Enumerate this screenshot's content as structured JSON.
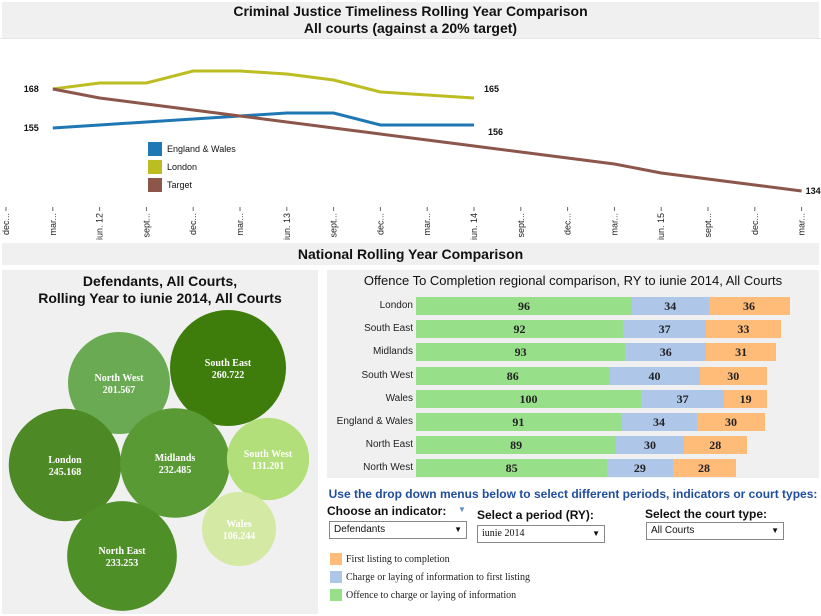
{
  "header": {
    "title_line1": "Criminal Justice Timeliness Rolling Year Comparison",
    "title_line2": "All courts (against a 20% target)"
  },
  "line_chart": {
    "x_ticks": [
      "dec...",
      "mar...",
      "iun. 12",
      "sept...",
      "dec...",
      "mar...",
      "iun. 13",
      "sept...",
      "dec...",
      "mar...",
      "iun. 14",
      "sept...",
      "dec...",
      "mar...",
      "iun. 15",
      "sept...",
      "dec...",
      "mar..."
    ],
    "legend": [
      {
        "label": "England & Wales",
        "color": "#1f77b4"
      },
      {
        "label": "London",
        "color": "#bcbd22"
      },
      {
        "label": "Target",
        "color": "#8c564b"
      }
    ],
    "labels": {
      "start_london": "168",
      "start_ew": "155",
      "end_london": "165",
      "end_ew": "156",
      "end_target": "134"
    }
  },
  "chart_data": {
    "type": "line",
    "x": [
      "dec...",
      "mar...",
      "iun. 12",
      "sept...",
      "dec...",
      "mar...",
      "iun. 13",
      "sept...",
      "dec...",
      "mar...",
      "iun. 14",
      "sept...",
      "dec...",
      "mar...",
      "iun. 15",
      "sept...",
      "dec...",
      "mar..."
    ],
    "series": [
      {
        "name": "England & Wales",
        "color": "#1f77b4",
        "values": [
          null,
          155,
          156,
          157,
          158,
          159,
          160,
          160,
          156,
          156,
          156,
          null,
          null,
          null,
          null,
          null,
          null,
          null
        ]
      },
      {
        "name": "London",
        "color": "#bcbd22",
        "values": [
          null,
          168,
          170,
          170,
          174,
          174,
          173,
          171,
          167,
          166,
          165,
          null,
          null,
          null,
          null,
          null,
          null,
          null
        ]
      },
      {
        "name": "Target",
        "color": "#8c564b",
        "values": [
          null,
          168,
          165,
          163,
          161,
          159,
          157,
          155,
          153,
          151,
          149,
          147,
          145,
          143,
          140,
          138,
          136,
          134
        ]
      }
    ],
    "ylim": [
      130,
      185
    ]
  },
  "national": {
    "title": "National Rolling Year Comparison"
  },
  "bubbles": {
    "title_line1": "Defendants, All Courts,",
    "title_line2": "Rolling Year to iunie 2014, All Courts",
    "items": [
      {
        "name": "North West",
        "value": "201.567",
        "num": 201.567,
        "color": "#6aaa52"
      },
      {
        "name": "South East",
        "value": "260.722",
        "num": 260.722,
        "color": "#3e7d0c"
      },
      {
        "name": "London",
        "value": "245.168",
        "num": 245.168,
        "color": "#4d8a26"
      },
      {
        "name": "Midlands",
        "value": "232.485",
        "num": 232.485,
        "color": "#5a9a35"
      },
      {
        "name": "South West",
        "value": "131.201",
        "num": 131.201,
        "color": "#b3df7a"
      },
      {
        "name": "Wales",
        "value": "106.244",
        "num": 106.244,
        "color": "#d4e9a4"
      },
      {
        "name": "North East",
        "value": "233.253",
        "num": 233.253,
        "color": "#4f8f28"
      }
    ]
  },
  "regional": {
    "title": "Offence To Completion regional comparison, RY to iunie 2014, All Courts",
    "rows": [
      {
        "label": "London",
        "a": 96,
        "b": 34,
        "c": 36
      },
      {
        "label": "South East",
        "a": 92,
        "b": 37,
        "c": 33
      },
      {
        "label": "Midlands",
        "a": 93,
        "b": 36,
        "c": 31
      },
      {
        "label": "South West",
        "a": 86,
        "b": 40,
        "c": 30
      },
      {
        "label": "Wales",
        "a": 100,
        "b": 37,
        "c": 19
      },
      {
        "label": "England & Wales",
        "a": 91,
        "b": 34,
        "c": 30
      },
      {
        "label": "North East",
        "a": 89,
        "b": 30,
        "c": 28
      },
      {
        "label": "North West",
        "a": 85,
        "b": 29,
        "c": 28
      }
    ],
    "colors": {
      "a": "#98df8a",
      "b": "#aec7e8",
      "c": "#ffbb78"
    }
  },
  "controls": {
    "instruction": "Use the drop down menus below to select different periods, indicators or court types:",
    "indicator_label": "Choose an indicator:",
    "indicator_value": "Defendants",
    "period_label": "Select a period (RY):",
    "period_value": "iunie 2014",
    "court_label": "Select the court type:",
    "court_value": "All Courts"
  },
  "legend2": [
    {
      "label": "First listing to completion",
      "color": "#ffbb78"
    },
    {
      "label": "Charge or laying of information to first listing",
      "color": "#aec7e8"
    },
    {
      "label": "Offence to charge or laying of information",
      "color": "#98df8a"
    }
  ]
}
